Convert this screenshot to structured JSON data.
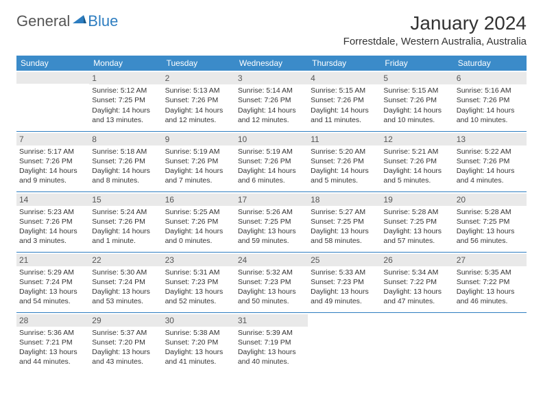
{
  "logo": {
    "general": "General",
    "blue": "Blue"
  },
  "title": "January 2024",
  "location": "Forrestdale, Western Australia, Australia",
  "header_bg": "#3b8bc9",
  "header_fg": "#ffffff",
  "rule_color": "#2d7dc0",
  "daynum_bg": "#e9e9e9",
  "dow": [
    "Sunday",
    "Monday",
    "Tuesday",
    "Wednesday",
    "Thursday",
    "Friday",
    "Saturday"
  ],
  "weeks": [
    [
      null,
      {
        "n": "1",
        "sr": "5:12 AM",
        "ss": "7:25 PM",
        "dl": "14 hours and 13 minutes."
      },
      {
        "n": "2",
        "sr": "5:13 AM",
        "ss": "7:26 PM",
        "dl": "14 hours and 12 minutes."
      },
      {
        "n": "3",
        "sr": "5:14 AM",
        "ss": "7:26 PM",
        "dl": "14 hours and 12 minutes."
      },
      {
        "n": "4",
        "sr": "5:15 AM",
        "ss": "7:26 PM",
        "dl": "14 hours and 11 minutes."
      },
      {
        "n": "5",
        "sr": "5:15 AM",
        "ss": "7:26 PM",
        "dl": "14 hours and 10 minutes."
      },
      {
        "n": "6",
        "sr": "5:16 AM",
        "ss": "7:26 PM",
        "dl": "14 hours and 10 minutes."
      }
    ],
    [
      {
        "n": "7",
        "sr": "5:17 AM",
        "ss": "7:26 PM",
        "dl": "14 hours and 9 minutes."
      },
      {
        "n": "8",
        "sr": "5:18 AM",
        "ss": "7:26 PM",
        "dl": "14 hours and 8 minutes."
      },
      {
        "n": "9",
        "sr": "5:19 AM",
        "ss": "7:26 PM",
        "dl": "14 hours and 7 minutes."
      },
      {
        "n": "10",
        "sr": "5:19 AM",
        "ss": "7:26 PM",
        "dl": "14 hours and 6 minutes."
      },
      {
        "n": "11",
        "sr": "5:20 AM",
        "ss": "7:26 PM",
        "dl": "14 hours and 5 minutes."
      },
      {
        "n": "12",
        "sr": "5:21 AM",
        "ss": "7:26 PM",
        "dl": "14 hours and 5 minutes."
      },
      {
        "n": "13",
        "sr": "5:22 AM",
        "ss": "7:26 PM",
        "dl": "14 hours and 4 minutes."
      }
    ],
    [
      {
        "n": "14",
        "sr": "5:23 AM",
        "ss": "7:26 PM",
        "dl": "14 hours and 3 minutes."
      },
      {
        "n": "15",
        "sr": "5:24 AM",
        "ss": "7:26 PM",
        "dl": "14 hours and 1 minute."
      },
      {
        "n": "16",
        "sr": "5:25 AM",
        "ss": "7:26 PM",
        "dl": "14 hours and 0 minutes."
      },
      {
        "n": "17",
        "sr": "5:26 AM",
        "ss": "7:25 PM",
        "dl": "13 hours and 59 minutes."
      },
      {
        "n": "18",
        "sr": "5:27 AM",
        "ss": "7:25 PM",
        "dl": "13 hours and 58 minutes."
      },
      {
        "n": "19",
        "sr": "5:28 AM",
        "ss": "7:25 PM",
        "dl": "13 hours and 57 minutes."
      },
      {
        "n": "20",
        "sr": "5:28 AM",
        "ss": "7:25 PM",
        "dl": "13 hours and 56 minutes."
      }
    ],
    [
      {
        "n": "21",
        "sr": "5:29 AM",
        "ss": "7:24 PM",
        "dl": "13 hours and 54 minutes."
      },
      {
        "n": "22",
        "sr": "5:30 AM",
        "ss": "7:24 PM",
        "dl": "13 hours and 53 minutes."
      },
      {
        "n": "23",
        "sr": "5:31 AM",
        "ss": "7:23 PM",
        "dl": "13 hours and 52 minutes."
      },
      {
        "n": "24",
        "sr": "5:32 AM",
        "ss": "7:23 PM",
        "dl": "13 hours and 50 minutes."
      },
      {
        "n": "25",
        "sr": "5:33 AM",
        "ss": "7:23 PM",
        "dl": "13 hours and 49 minutes."
      },
      {
        "n": "26",
        "sr": "5:34 AM",
        "ss": "7:22 PM",
        "dl": "13 hours and 47 minutes."
      },
      {
        "n": "27",
        "sr": "5:35 AM",
        "ss": "7:22 PM",
        "dl": "13 hours and 46 minutes."
      }
    ],
    [
      {
        "n": "28",
        "sr": "5:36 AM",
        "ss": "7:21 PM",
        "dl": "13 hours and 44 minutes."
      },
      {
        "n": "29",
        "sr": "5:37 AM",
        "ss": "7:20 PM",
        "dl": "13 hours and 43 minutes."
      },
      {
        "n": "30",
        "sr": "5:38 AM",
        "ss": "7:20 PM",
        "dl": "13 hours and 41 minutes."
      },
      {
        "n": "31",
        "sr": "5:39 AM",
        "ss": "7:19 PM",
        "dl": "13 hours and 40 minutes."
      },
      null,
      null,
      null
    ]
  ],
  "labels": {
    "sunrise": "Sunrise: ",
    "sunset": "Sunset: ",
    "daylight": "Daylight: "
  }
}
